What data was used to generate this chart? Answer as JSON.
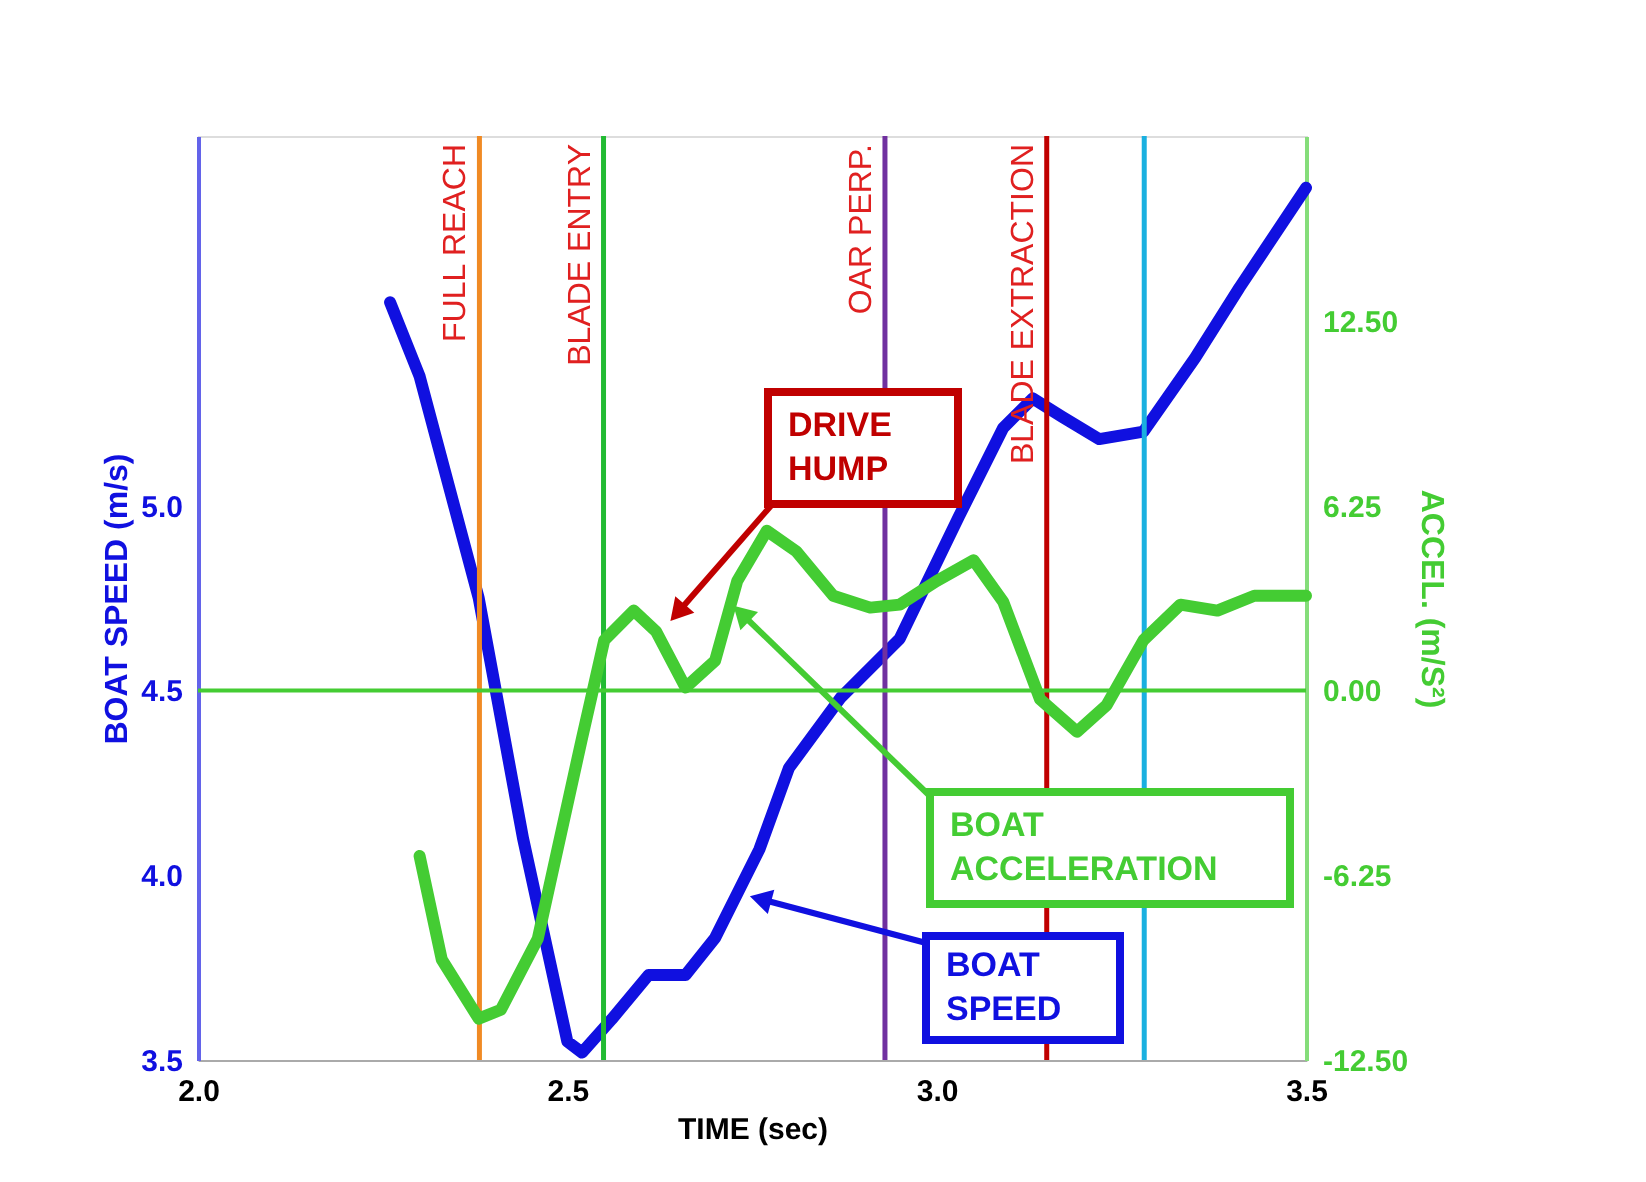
{
  "chart_data": {
    "type": "line",
    "xlabel": "TIME (sec)",
    "ylabel": "BOAT SPEED (m/s)",
    "y2label": "ACCEL.   (m/S²)",
    "xlim": [
      2.0,
      3.5
    ],
    "xticks": [
      {
        "value": 2.0,
        "label": "2.0"
      },
      {
        "value": 2.5,
        "label": "2.5"
      },
      {
        "value": 3.0,
        "label": "3.0"
      },
      {
        "value": 3.5,
        "label": "3.5"
      }
    ],
    "ylim": [
      3.5,
      6.0
    ],
    "yticks": [
      {
        "value": 3.5,
        "label": "3.5"
      },
      {
        "value": 4.0,
        "label": "4.0"
      },
      {
        "value": 4.5,
        "label": "4.5"
      },
      {
        "value": 5.0,
        "label": "5.0"
      }
    ],
    "y2lim": [
      -12.5,
      18.75
    ],
    "y2ticks": [
      {
        "value": -12.5,
        "label": "-12.50"
      },
      {
        "value": -6.25,
        "label": "-6.25"
      },
      {
        "value": 0.0,
        "label": "0.00"
      },
      {
        "value": 6.25,
        "label": "6.25"
      },
      {
        "value": 12.5,
        "label": "12.50"
      }
    ],
    "grid": false,
    "marker": "none",
    "line_style": "solid",
    "series": [
      {
        "name": "BOAT SPEED",
        "color": "#1010e0",
        "x": [
          2.26,
          2.3,
          2.38,
          2.44,
          2.5,
          2.52,
          2.56,
          2.61,
          2.66,
          2.7,
          2.76,
          2.8,
          2.87,
          2.95,
          3.03,
          3.09,
          3.13,
          3.17,
          3.22,
          3.28,
          3.35,
          3.41,
          3.5
        ],
        "values": [
          5.55,
          5.35,
          4.75,
          4.1,
          3.55,
          3.52,
          3.61,
          3.73,
          3.73,
          3.83,
          4.07,
          4.29,
          4.48,
          4.64,
          4.97,
          5.21,
          5.29,
          5.24,
          5.18,
          5.2,
          5.4,
          5.59,
          5.86
        ]
      },
      {
        "name": "BOAT ACCELERATION",
        "color": "#44cc33",
        "axis": "y2",
        "x": [
          2.3,
          2.33,
          2.38,
          2.41,
          2.46,
          2.52,
          2.55,
          2.59,
          2.62,
          2.66,
          2.7,
          2.73,
          2.77,
          2.81,
          2.86,
          2.91,
          2.95,
          3.0,
          3.05,
          3.09,
          3.14,
          3.19,
          3.23,
          3.28,
          3.33,
          3.38,
          3.43,
          3.5
        ],
        "values": [
          -5.6,
          -9.1,
          -11.1,
          -10.8,
          -8.4,
          -1.6,
          1.7,
          2.7,
          2.0,
          0.1,
          1.0,
          3.7,
          5.4,
          4.7,
          3.2,
          2.8,
          2.9,
          3.7,
          4.4,
          3.0,
          -0.3,
          -1.4,
          -0.5,
          1.7,
          2.9,
          2.7,
          3.2,
          3.2
        ]
      }
    ],
    "ref_lines": [
      {
        "axis": "x",
        "value": 2.381,
        "label": "FULL REACH",
        "color": "#f08a24"
      },
      {
        "axis": "x",
        "value": 2.549,
        "label": "BLADE ENTRY",
        "color": "#22bb33"
      },
      {
        "axis": "x",
        "value": 2.93,
        "label": "OAR PERP.",
        "color": "#7030a0"
      },
      {
        "axis": "x",
        "value": 3.149,
        "label": "BLADE EXTRACTION",
        "color": "#c00000"
      },
      {
        "axis": "x",
        "value": 3.281,
        "label": null,
        "color": "#1ab0e0"
      },
      {
        "axis": "y2",
        "value": 0.0,
        "label": null,
        "color": "#44cc33"
      }
    ],
    "annotations": [
      "DRIVE HUMP"
    ]
  }
}
